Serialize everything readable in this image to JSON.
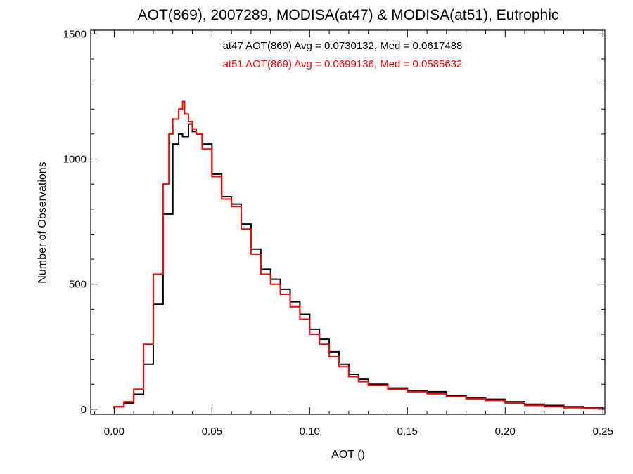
{
  "chart_data": {
    "type": "line",
    "step": true,
    "title": "AOT(869), 2007289, MODISA(at47) & MODISA(at51), Eutrophic",
    "xlabel": "AOT ()",
    "ylabel": "Number of Observations",
    "xlim": [
      -0.012,
      0.251
    ],
    "ylim": [
      -20,
      1515
    ],
    "x_ticks": [
      0.0,
      0.05,
      0.1,
      0.15,
      0.2,
      0.25
    ],
    "x_tick_labels": [
      "0.00",
      "0.05",
      "0.10",
      "0.15",
      "0.20",
      "0.25"
    ],
    "y_ticks": [
      0,
      500,
      1000,
      1500
    ],
    "y_tick_labels": [
      "0",
      "500",
      "1000",
      "1500"
    ],
    "grid": false,
    "annotations": [
      {
        "text": "at47 AOT(869) Avg = 0.0730132, Med = 0.0617488",
        "color": "#000000"
      },
      {
        "text": "at51 AOT(869) Avg = 0.0699136, Med = 0.0585632",
        "color": "#ff0000"
      }
    ],
    "series": [
      {
        "color": "#000000",
        "x": [
          0.0,
          0.005,
          0.01,
          0.015,
          0.02,
          0.025,
          0.03,
          0.033,
          0.035,
          0.038,
          0.04,
          0.042,
          0.045,
          0.05,
          0.055,
          0.06,
          0.065,
          0.07,
          0.075,
          0.08,
          0.085,
          0.09,
          0.095,
          0.1,
          0.105,
          0.11,
          0.115,
          0.12,
          0.125,
          0.13,
          0.14,
          0.15,
          0.16,
          0.17,
          0.18,
          0.19,
          0.2,
          0.21,
          0.22,
          0.23,
          0.24,
          0.25
        ],
        "y": [
          10,
          25,
          60,
          180,
          420,
          780,
          1060,
          1100,
          1090,
          1140,
          1110,
          1100,
          1060,
          940,
          850,
          820,
          740,
          640,
          560,
          520,
          480,
          430,
          380,
          320,
          280,
          230,
          180,
          140,
          120,
          100,
          85,
          75,
          70,
          55,
          45,
          40,
          30,
          20,
          15,
          10,
          5,
          3
        ]
      },
      {
        "color": "#ff0000",
        "x": [
          0.0,
          0.005,
          0.01,
          0.015,
          0.02,
          0.025,
          0.028,
          0.03,
          0.033,
          0.035,
          0.036,
          0.038,
          0.04,
          0.042,
          0.045,
          0.05,
          0.055,
          0.06,
          0.065,
          0.07,
          0.075,
          0.08,
          0.085,
          0.09,
          0.095,
          0.1,
          0.105,
          0.11,
          0.115,
          0.12,
          0.125,
          0.13,
          0.14,
          0.15,
          0.16,
          0.17,
          0.18,
          0.19,
          0.2,
          0.21,
          0.22,
          0.23,
          0.24,
          0.25
        ],
        "y": [
          10,
          30,
          80,
          260,
          540,
          900,
          1100,
          1160,
          1200,
          1230,
          1180,
          1150,
          1120,
          1100,
          1040,
          930,
          840,
          810,
          720,
          620,
          540,
          500,
          460,
          410,
          360,
          300,
          260,
          210,
          170,
          130,
          110,
          95,
          80,
          70,
          62,
          50,
          42,
          35,
          25,
          15,
          10,
          6,
          3,
          2
        ]
      }
    ]
  }
}
